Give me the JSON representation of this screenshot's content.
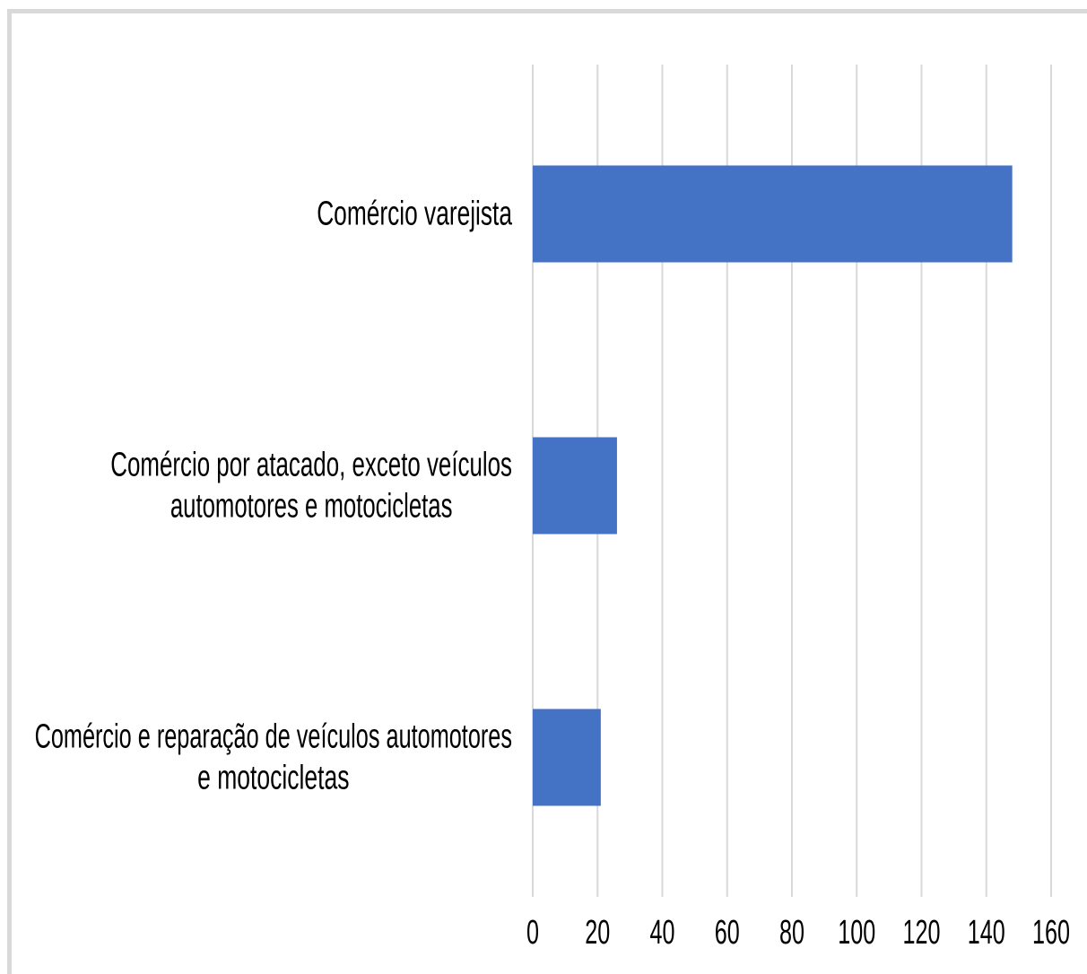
{
  "chart_data": {
    "type": "bar",
    "orientation": "horizontal",
    "categories": [
      [
        "Comércio varejista"
      ],
      [
        "Comércio por atacado, exceto veículos",
        "automotores e motocicletas"
      ],
      [
        "Comércio e reparação de veículos automotores",
        "e motocicletas"
      ]
    ],
    "values": [
      148,
      26,
      21
    ],
    "ticks": [
      "0",
      "20",
      "40",
      "60",
      "80",
      "100",
      "120",
      "140",
      "160"
    ],
    "xlim": [
      0,
      160
    ],
    "grid": "vertical",
    "bar_color": "#4472c4",
    "grid_color": "#d9d9d9",
    "title": "",
    "xlabel": "",
    "ylabel": ""
  }
}
